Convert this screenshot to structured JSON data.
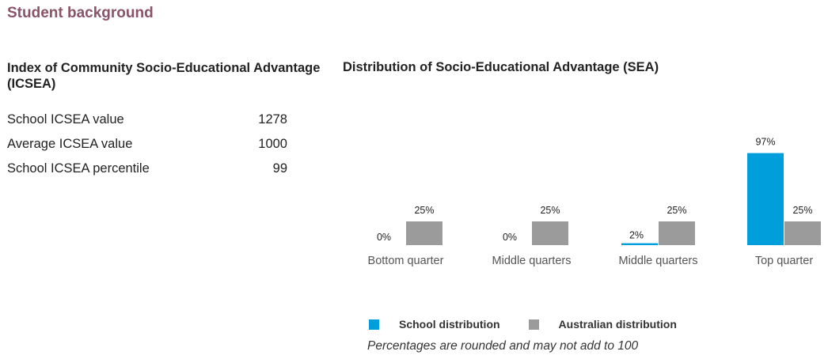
{
  "section": {
    "title": "Student background"
  },
  "icsea": {
    "heading": "Index of Community Socio-Educational Advantage (ICSEA)",
    "rows": [
      {
        "label": "School ICSEA value",
        "value": "1278"
      },
      {
        "label": "Average ICSEA value",
        "value": "1000"
      },
      {
        "label": "School ICSEA percentile",
        "value": "99"
      }
    ]
  },
  "distribution": {
    "heading": "Distribution of Socio-Educational Advantage (SEA)"
  },
  "chart_data": {
    "type": "bar",
    "title": "Distribution of Socio-Educational Advantage (SEA)",
    "categories": [
      "Bottom quarter",
      "Middle quarters",
      "Middle quarters",
      "Top quarter"
    ],
    "series": [
      {
        "name": "School distribution",
        "values": [
          0,
          0,
          2,
          97
        ],
        "color": "#009fdb"
      },
      {
        "name": "Australian distribution",
        "values": [
          25,
          25,
          25,
          25
        ],
        "color": "#9b9b9b"
      }
    ],
    "value_suffix": "%",
    "ylim": [
      0,
      100
    ],
    "grid": false,
    "legend_position": "bottom"
  },
  "legend": {
    "items": [
      {
        "label": "School distribution",
        "color": "#009fdb"
      },
      {
        "label": "Australian distribution",
        "color": "#9b9b9b"
      }
    ]
  },
  "footnote": "Percentages are rounded and may not add to 100"
}
